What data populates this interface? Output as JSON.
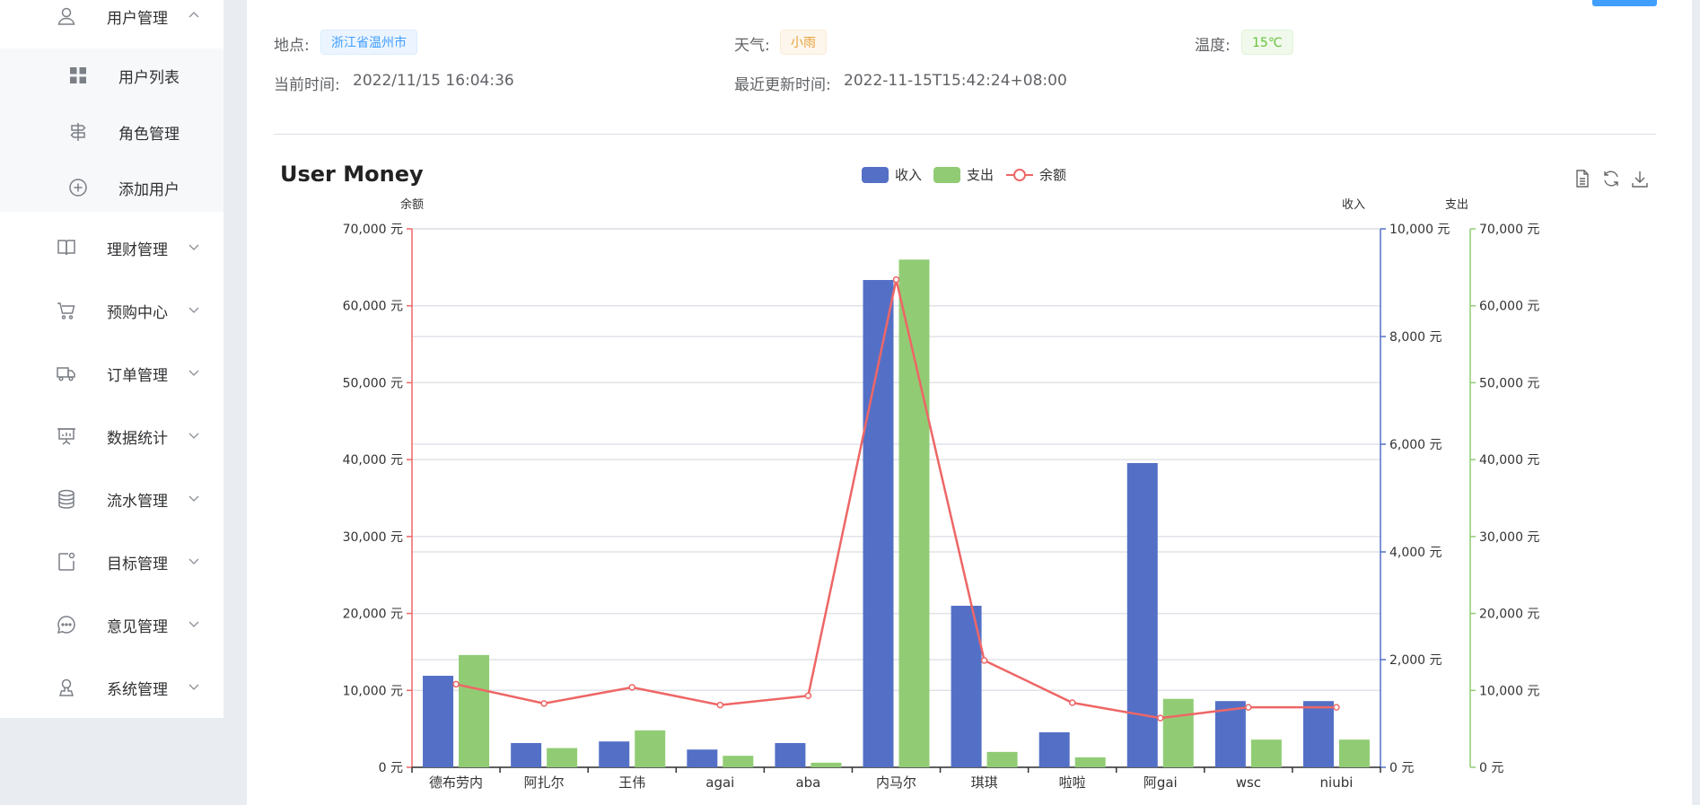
{
  "sidebar": {
    "items": [
      {
        "label": "用户管理",
        "icon": "user-icon",
        "expanded": true
      },
      {
        "label": "用户列表",
        "icon": "grid-icon",
        "sub": true
      },
      {
        "label": "角色管理",
        "icon": "signpost-icon",
        "sub": true
      },
      {
        "label": "添加用户",
        "icon": "plus-circle-icon",
        "sub": true
      },
      {
        "label": "理财管理",
        "icon": "book-icon",
        "expanded": false
      },
      {
        "label": "预购中心",
        "icon": "cart-icon",
        "expanded": false
      },
      {
        "label": "订单管理",
        "icon": "truck-icon",
        "expanded": false
      },
      {
        "label": "数据统计",
        "icon": "presentation-icon",
        "expanded": false
      },
      {
        "label": "流水管理",
        "icon": "coins-icon",
        "expanded": false
      },
      {
        "label": "目标管理",
        "icon": "target-icon",
        "expanded": false
      },
      {
        "label": "意见管理",
        "icon": "chat-icon",
        "expanded": false
      },
      {
        "label": "系统管理",
        "icon": "admin-icon",
        "expanded": false
      }
    ]
  },
  "info": {
    "location_label": "地点:",
    "location_value": "浙江省温州市",
    "weather_label": "天气:",
    "weather_value": "小雨",
    "temp_label": "温度:",
    "temp_value": "15℃",
    "current_time_label": "当前时间:",
    "current_time_value": "2022/11/15 16:04:36",
    "update_time_label": "最近更新时间:",
    "update_time_value": "2022-11-15T15:42:24+08:00"
  },
  "colors": {
    "income": "#5470c6",
    "expense": "#91cc75",
    "balance": "#ee6666",
    "accent": "#409eff"
  },
  "chart_data": {
    "type": "bar",
    "title": "User Money",
    "categories": [
      "德布劳内",
      "阿扎尔",
      "王伟",
      "agai",
      "aba",
      "内马尔",
      "琪琪",
      "啦啦",
      "阿gai",
      "wsc",
      "niubi"
    ],
    "series": [
      {
        "name": "收入",
        "type": "bar",
        "axis": "收入",
        "values": [
          1700,
          450,
          480,
          330,
          450,
          9050,
          3000,
          650,
          5650,
          1230,
          1230
        ]
      },
      {
        "name": "支出",
        "type": "bar",
        "axis": "支出",
        "values": [
          14600,
          2500,
          4800,
          1500,
          600,
          66000,
          2000,
          1300,
          8900,
          3600,
          3600
        ]
      },
      {
        "name": "余额",
        "type": "line",
        "axis": "余额",
        "values": [
          10800,
          8300,
          10400,
          8100,
          9300,
          63400,
          13900,
          8400,
          6400,
          7800,
          7800
        ]
      }
    ],
    "axes": {
      "left": {
        "name": "余额",
        "min": 0,
        "max": 70000,
        "ticks": [
          "0 元",
          "10,000 元",
          "20,000 元",
          "30,000 元",
          "40,000 元",
          "50,000 元",
          "60,000 元",
          "70,000 元"
        ]
      },
      "right1": {
        "name": "收入",
        "min": 0,
        "max": 10000,
        "ticks": [
          "0 元",
          "2,000 元",
          "4,000 元",
          "6,000 元",
          "8,000 元",
          "10,000 元"
        ]
      },
      "right2": {
        "name": "支出",
        "min": 0,
        "max": 70000,
        "ticks": [
          "0 元",
          "10,000 元",
          "20,000 元",
          "30,000 元",
          "40,000 元",
          "50,000 元",
          "60,000 元",
          "70,000 元"
        ]
      }
    },
    "legend": [
      "收入",
      "支出",
      "余额"
    ],
    "legend_position": "top-center",
    "grid": true
  },
  "toolbox": {
    "data_view_icon": "document-icon",
    "restore_icon": "refresh-icon",
    "save_icon": "download-icon"
  }
}
